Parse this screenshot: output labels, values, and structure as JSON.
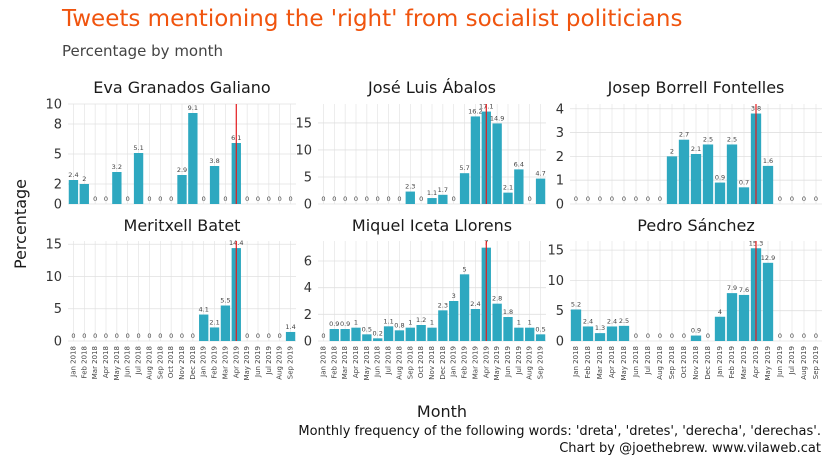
{
  "title": "Tweets mentioning the 'right' from socialist politicians",
  "subtitle": "Percentage by month",
  "ylabel": "Percentage",
  "xlabel": "Month",
  "caption_lines": [
    "Monthly frequency of the following words: 'dreta', 'dretes', 'derecha', 'derechas'.",
    "Chart by @joethebrew. www.vilaweb.cat"
  ],
  "colors": {
    "bar": "#2ea8c0",
    "marker": "#e41a1c",
    "title": "#f0540e",
    "grid": "#e0e0e0"
  },
  "chart_data": {
    "type": "bar",
    "facets": "2x3 small multiples",
    "reference_line_month": "Apr 2019",
    "months": [
      "Jan 2018",
      "Feb 2018",
      "Mar 2018",
      "Apr 2018",
      "May 2018",
      "Jun 2018",
      "Jul 2018",
      "Aug 2018",
      "Sep 2018",
      "Oct 2018",
      "Nov 2018",
      "Dec 2018",
      "Jan 2019",
      "Feb 2019",
      "Mar 2019",
      "Apr 2019",
      "May 2019",
      "Jun 2019",
      "Jul 2019",
      "Aug 2019",
      "Sep 2019"
    ],
    "panels": [
      {
        "name": "Eva Granados Galiano",
        "ylim": [
          0,
          10
        ],
        "yticks": [
          "0",
          "2",
          "5",
          "8",
          "10"
        ],
        "values": [
          2.4,
          2,
          0,
          0,
          3.2,
          0,
          5.1,
          0,
          0,
          0,
          2.9,
          9.1,
          0,
          3.8,
          0,
          6.1,
          0,
          0,
          0,
          0,
          0
        ],
        "labels": [
          "2.4",
          "2",
          "0",
          "0",
          "3.2",
          "0",
          "5.1",
          "0",
          "0",
          "0",
          "2.9",
          "9.1",
          "0",
          "3.8",
          "0",
          "6.1",
          "0",
          "0",
          "0",
          "0",
          "0"
        ]
      },
      {
        "name": "José Luis Ábalos",
        "ylim": [
          0,
          18.5
        ],
        "yticks": [
          "0",
          "5",
          "10",
          "15"
        ],
        "values": [
          0,
          0,
          0,
          0,
          0,
          0,
          0,
          0,
          2.3,
          0,
          1.1,
          1.7,
          0,
          5.7,
          16.2,
          17.1,
          14.9,
          2.1,
          6.4,
          0,
          4.7
        ],
        "labels": [
          "0",
          "0",
          "0",
          "0",
          "0",
          "0",
          "0",
          "0",
          "2.3",
          "0",
          "1.1",
          "1.7",
          "0",
          "5.7",
          "16.2",
          "17.1",
          "14.9",
          "2.1",
          "6.4",
          "0",
          "4.7"
        ]
      },
      {
        "name": "Josep Borrell Fontelles",
        "ylim": [
          0,
          4.2
        ],
        "yticks": [
          "0",
          "1",
          "2",
          "3",
          "4"
        ],
        "values": [
          0,
          0,
          0,
          0,
          0,
          0,
          0,
          0,
          2,
          2.7,
          2.1,
          2.5,
          0.9,
          2.5,
          0.7,
          3.8,
          1.6,
          0,
          0,
          0,
          0
        ],
        "labels": [
          "0",
          "0",
          "0",
          "0",
          "0",
          "0",
          "0",
          "0",
          "2",
          "2.7",
          "2.1",
          "2.5",
          "0.9",
          "2.5",
          "0.7",
          "3.8",
          "1.6",
          "0",
          "0",
          "0",
          "0"
        ]
      },
      {
        "name": "Meritxell Batet",
        "ylim": [
          0,
          15.5
        ],
        "yticks": [
          "0",
          "5",
          "10",
          "15"
        ],
        "values": [
          0,
          0,
          0,
          0,
          0,
          0,
          0,
          0,
          0,
          0,
          0,
          0,
          4.1,
          2.1,
          5.5,
          14.4,
          0,
          0,
          0,
          0,
          1.4
        ],
        "labels": [
          "0",
          "0",
          "0",
          "0",
          "0",
          "0",
          "0",
          "0",
          "0",
          "0",
          "0",
          "0",
          "4.1",
          "2.1",
          "5.5",
          "14.4",
          "0",
          "0",
          "0",
          "0",
          "1.4"
        ]
      },
      {
        "name": "Miquel Iceta Llorens",
        "ylim": [
          0,
          7.5
        ],
        "yticks": [
          "0",
          "2",
          "4",
          "6"
        ],
        "values": [
          0,
          0.9,
          0.9,
          1,
          0.5,
          0.2,
          1.1,
          0.8,
          1,
          1.2,
          1,
          2.3,
          3,
          5,
          2.4,
          7,
          2.8,
          1.8,
          1,
          1,
          0.5
        ],
        "labels": [
          "0",
          "0.9",
          "0.9",
          "1",
          "0.5",
          "0.2",
          "1.1",
          "0.8",
          "1",
          "1.2",
          "1",
          "2.3",
          "3",
          "5",
          "2.4",
          "7",
          "2.8",
          "1.8",
          "1",
          "1",
          "0.5"
        ]
      },
      {
        "name": "Pedro Sánchez",
        "ylim": [
          0,
          16.5
        ],
        "yticks": [
          "0",
          "5",
          "10",
          "15"
        ],
        "values": [
          5.2,
          2.4,
          1.3,
          2.4,
          2.5,
          0,
          0,
          0,
          0,
          0,
          0.9,
          0,
          4,
          7.9,
          7.6,
          15.3,
          12.9,
          0,
          0,
          0,
          0
        ],
        "labels": [
          "5.2",
          "2.4",
          "1.3",
          "2.4",
          "2.5",
          "0",
          "0",
          "0",
          "0",
          "0",
          "0.9",
          "0",
          "4",
          "7.9",
          "7.6",
          "15.3",
          "12.9",
          "0",
          "0",
          "0",
          "0"
        ]
      }
    ]
  }
}
